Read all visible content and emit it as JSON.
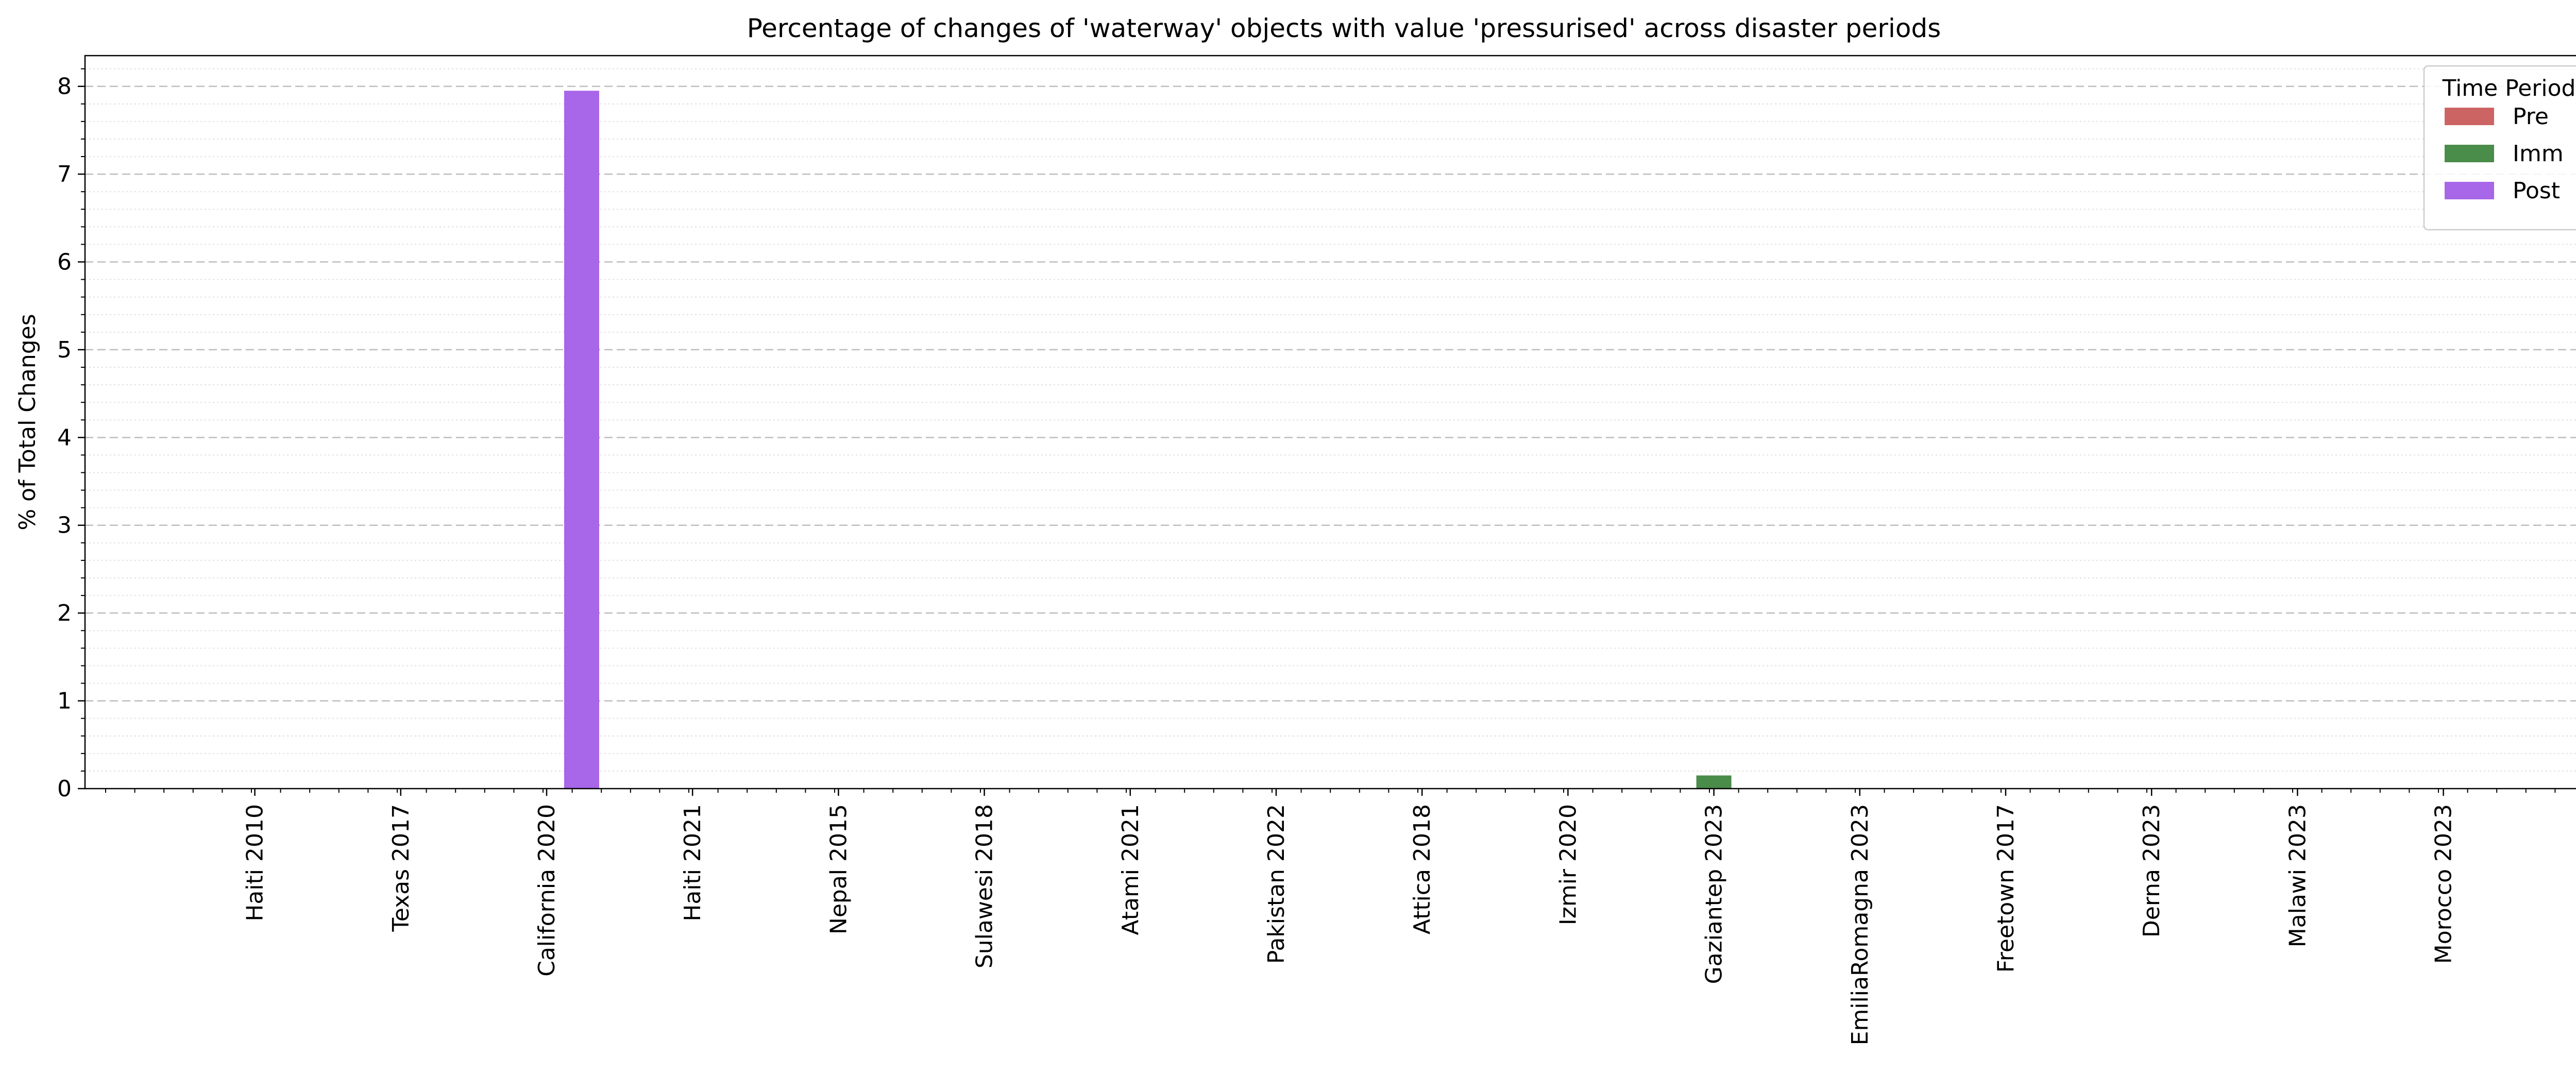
{
  "chart_data": {
    "type": "bar",
    "title": "Percentage of changes of 'waterway' objects with value 'pressurised' across disaster periods",
    "xlabel": "",
    "ylabel": "% of Total Changes",
    "ylim": [
      0,
      8.35
    ],
    "yticks": [
      0,
      1,
      2,
      3,
      4,
      5,
      6,
      7,
      8
    ],
    "grid": true,
    "legend": {
      "title": "Time Period",
      "placement": "top-right"
    },
    "categories": [
      "Haiti 2010",
      "Texas 2017",
      "California 2020",
      "Haiti 2021",
      "Nepal 2015",
      "Sulawesi 2018",
      "Atami 2021",
      "Pakistan 2022",
      "Attica 2018",
      "Izmir 2020",
      "Gaziantep 2023",
      "EmiliaRomagna 2023",
      "Freetown 2017",
      "Derna 2023",
      "Malawi 2023",
      "Morocco 2023"
    ],
    "series": [
      {
        "name": "Pre",
        "color": "#cd6464",
        "values": [
          0,
          0,
          0,
          0,
          0,
          0,
          0,
          0,
          0,
          0,
          0,
          0,
          0,
          0,
          0,
          0
        ]
      },
      {
        "name": "Imm",
        "color": "#4a8c4a",
        "values": [
          0,
          0,
          0,
          0,
          0,
          0,
          0,
          0,
          0,
          0,
          0.15,
          0,
          0,
          0,
          0,
          0
        ]
      },
      {
        "name": "Post",
        "color": "#a866e8",
        "values": [
          0,
          0,
          7.95,
          0,
          0,
          0,
          0,
          0,
          0,
          0,
          0,
          0,
          0,
          0,
          0,
          0
        ]
      }
    ]
  }
}
